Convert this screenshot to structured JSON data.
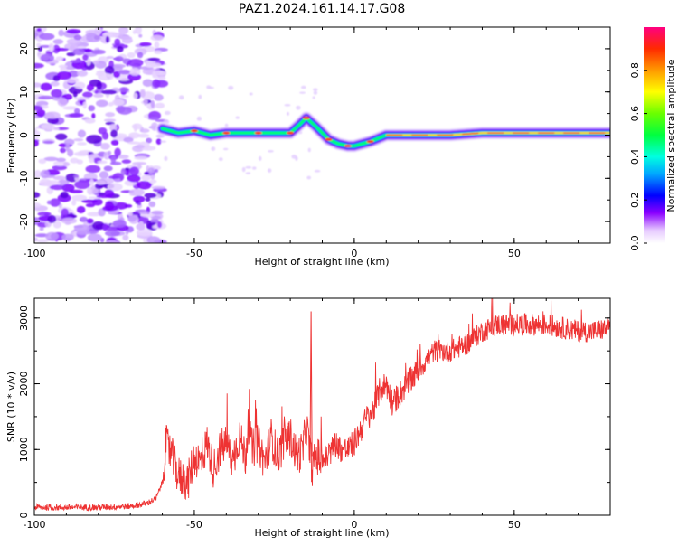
{
  "title": "PAZ1.2024.161.14.17.G08",
  "chart_data": [
    {
      "type": "heatmap",
      "xlabel": "Height of straight line (km)",
      "ylabel": "Frequency (Hz)",
      "xlim": [
        -100,
        80
      ],
      "ylim": [
        -25,
        25
      ],
      "x_ticks": [
        "-100",
        "-50",
        "0",
        "50"
      ],
      "y_ticks": [
        "-20",
        "-10",
        "0",
        "10",
        "20"
      ],
      "colorbar": {
        "label": "Normalized spectral amplitude",
        "range": [
          0.0,
          1.0
        ],
        "ticks": [
          "0.0",
          "0.2",
          "0.4",
          "0.6",
          "0.8"
        ]
      },
      "ridge": {
        "x": [
          -60,
          -55,
          -50,
          -45,
          -40,
          -35,
          -30,
          -25,
          -20,
          -17,
          -15,
          -12,
          -8,
          -5,
          -2,
          0,
          5,
          10,
          20,
          30,
          40,
          50,
          60,
          70,
          80
        ],
        "frequency": [
          1.5,
          0.5,
          1.0,
          0,
          0.5,
          0.5,
          0.5,
          0.5,
          0.5,
          2.5,
          4,
          2,
          -1,
          -2,
          -2.5,
          -2.5,
          -1.5,
          0,
          0,
          0,
          0.5,
          0.5,
          0.5,
          0.5,
          0.5
        ]
      }
    },
    {
      "type": "line",
      "xlabel": "Height of straight line (km)",
      "ylabel": "SNR (10 * v/v)",
      "xlim": [
        -100,
        80
      ],
      "ylim": [
        0,
        3300
      ],
      "x_ticks": [
        "-100",
        "-50",
        "0",
        "50"
      ],
      "y_ticks": [
        "0",
        "1000",
        "2000",
        "3000"
      ],
      "color": "#ee3333",
      "series": [
        {
          "x": [
            -100,
            -90,
            -80,
            -70,
            -65,
            -62,
            -60,
            -59,
            -57,
            -55,
            -52,
            -50,
            -48,
            -46,
            -44,
            -42,
            -40,
            -38,
            -36,
            -34,
            -33,
            -32,
            -30,
            -28,
            -26,
            -24,
            -22,
            -20,
            -18,
            -16,
            -15,
            -14,
            -13,
            -12,
            -10,
            -8,
            -6,
            -4,
            -2,
            0,
            2,
            4,
            6,
            8,
            10,
            12,
            15,
            20,
            25,
            30,
            35,
            40,
            45,
            50,
            55,
            60,
            65,
            70,
            75,
            80
          ],
          "y": [
            120,
            120,
            120,
            140,
            180,
            250,
            500,
            1100,
            900,
            600,
            500,
            900,
            800,
            1100,
            700,
            1000,
            1100,
            800,
            1200,
            900,
            1400,
            1000,
            1100,
            800,
            1200,
            900,
            1100,
            1200,
            900,
            1000,
            1400,
            1000,
            700,
            900,
            850,
            900,
            1100,
            1000,
            1000,
            1100,
            1300,
            1500,
            1600,
            1900,
            2000,
            1700,
            1900,
            2200,
            2500,
            2500,
            2600,
            2800,
            2900,
            2900,
            2900,
            2900,
            2850,
            2800,
            2800,
            2850
          ]
        }
      ],
      "spike": {
        "x": -13.5,
        "y": 3100
      }
    }
  ]
}
